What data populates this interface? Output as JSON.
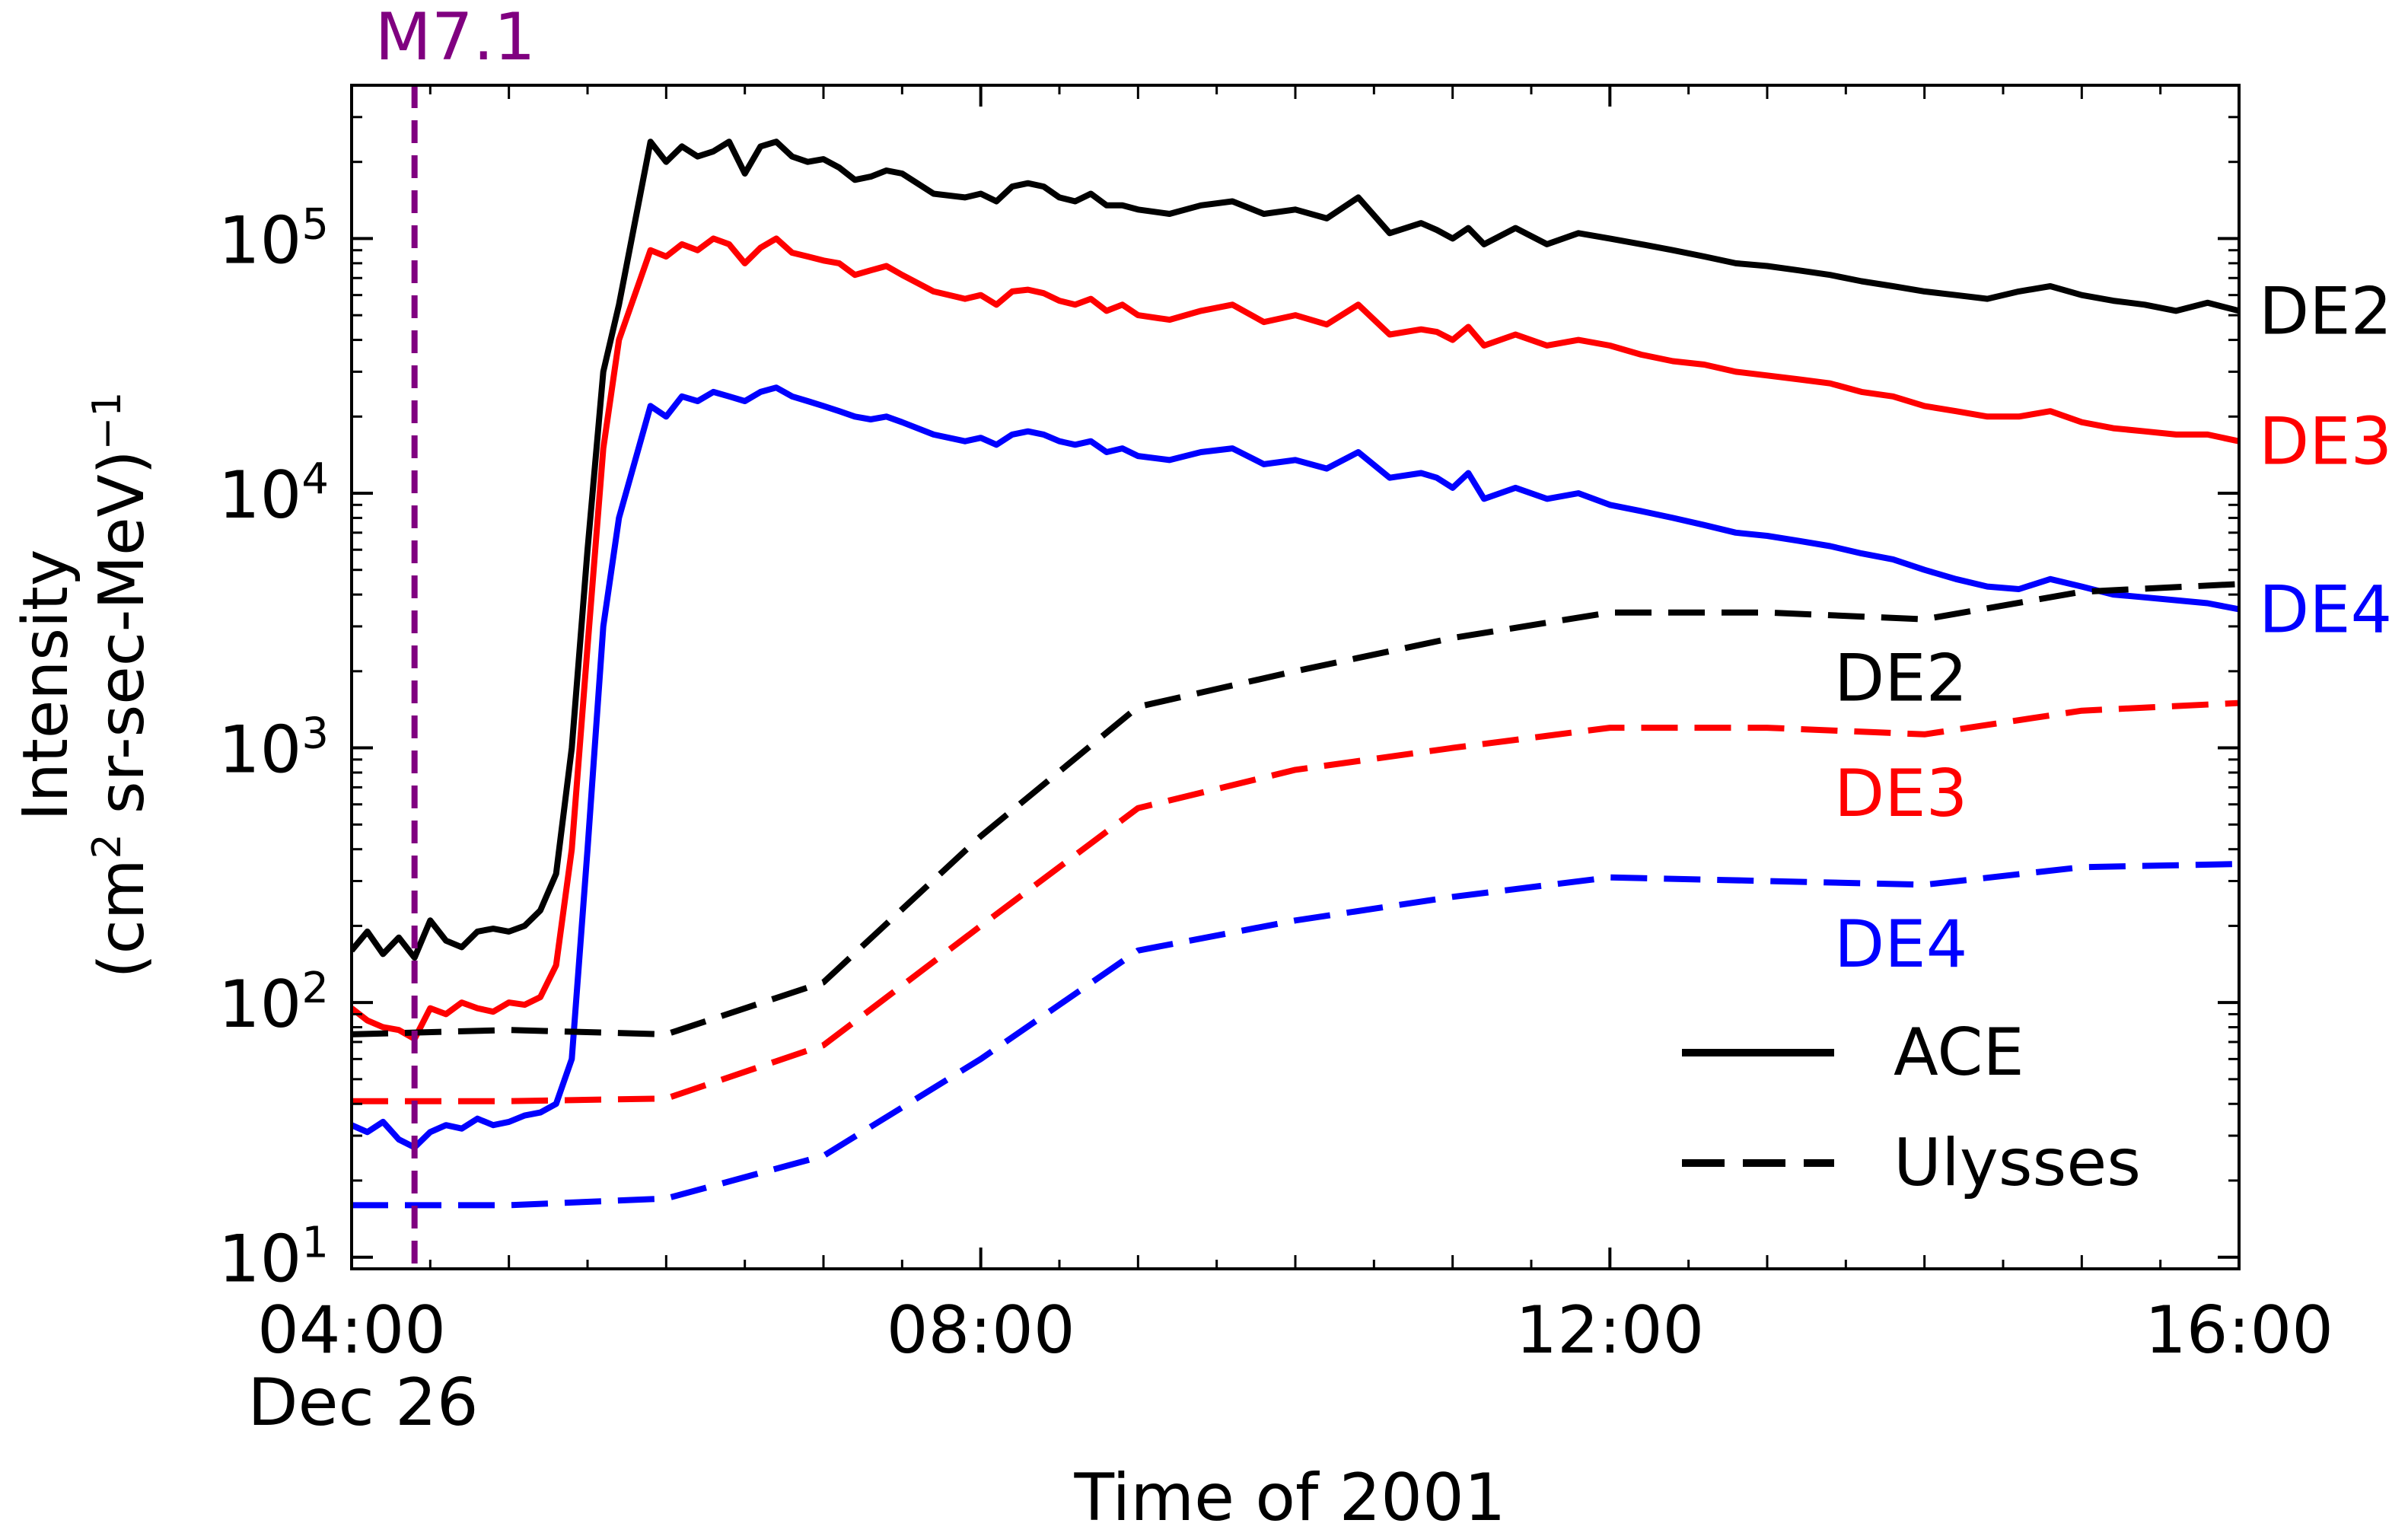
{
  "chart_data": {
    "type": "line",
    "xlabel": "Time of 2001",
    "ylabel_line1": "Intensity",
    "ylabel_line2_prefix": "(cm",
    "ylabel_line2_sup": "2",
    "ylabel_line2_suffix": " sr-sec-MeV)",
    "ylabel_line2_exp": "−1",
    "x_unit": "hours since 00:00 Dec 26",
    "xlim": [
      4,
      16
    ],
    "y_scale": "log",
    "ylim": [
      9,
      400000
    ],
    "x_ticks": [
      {
        "value": 4,
        "label": "04:00"
      },
      {
        "value": 8,
        "label": "08:00"
      },
      {
        "value": 12,
        "label": "12:00"
      },
      {
        "value": 16,
        "label": "16:00"
      }
    ],
    "x_date_label": "Dec 26",
    "y_ticks": [
      {
        "value": 10,
        "base": "10",
        "exp": "1"
      },
      {
        "value": 100,
        "base": "10",
        "exp": "2"
      },
      {
        "value": 1000,
        "base": "10",
        "exp": "3"
      },
      {
        "value": 10000,
        "base": "10",
        "exp": "4"
      },
      {
        "value": 100000,
        "base": "10",
        "exp": "5"
      }
    ],
    "event": {
      "label": "M7.1",
      "x": 4.4,
      "color": "#800080"
    },
    "legend": [
      {
        "label": "ACE",
        "style": "solid"
      },
      {
        "label": "Ulysses",
        "style": "dashed"
      }
    ],
    "series": [
      {
        "name": "ACE DE2",
        "label": "DE2",
        "color": "#000000",
        "style": "solid",
        "x": [
          4,
          4.1,
          4.2,
          4.3,
          4.4,
          4.5,
          4.6,
          4.7,
          4.8,
          4.9,
          5,
          5.1,
          5.2,
          5.3,
          5.4,
          5.5,
          5.6,
          5.7,
          5.9,
          6.0,
          6.1,
          6.2,
          6.3,
          6.4,
          6.5,
          6.6,
          6.7,
          6.8,
          6.9,
          7.0,
          7.1,
          7.2,
          7.3,
          7.4,
          7.5,
          7.7,
          7.9,
          8.0,
          8.1,
          8.2,
          8.3,
          8.4,
          8.5,
          8.6,
          8.7,
          8.8,
          8.9,
          9.0,
          9.2,
          9.4,
          9.6,
          9.8,
          10.0,
          10.2,
          10.4,
          10.6,
          10.8,
          10.9,
          11.0,
          11.1,
          11.2,
          11.4,
          11.6,
          11.8,
          12.0,
          12.2,
          12.4,
          12.6,
          12.8,
          13.0,
          13.2,
          13.4,
          13.6,
          13.8,
          14.0,
          14.2,
          14.4,
          14.6,
          14.8,
          15.0,
          15.2,
          15.4,
          15.6,
          15.8,
          16.0
        ],
        "y": [
          160,
          190,
          155,
          180,
          150,
          210,
          175,
          165,
          190,
          195,
          190,
          200,
          230,
          320,
          1000,
          6000,
          30000,
          55000,
          240000,
          200000,
          230000,
          210000,
          220000,
          240000,
          180000,
          230000,
          240000,
          210000,
          200000,
          205000,
          190000,
          170000,
          175000,
          185000,
          180000,
          150000,
          145000,
          150000,
          140000,
          160000,
          165000,
          160000,
          145000,
          140000,
          150000,
          135000,
          135000,
          130000,
          125000,
          135000,
          140000,
          125000,
          130000,
          120000,
          145000,
          105000,
          115000,
          108000,
          100000,
          110000,
          95000,
          110000,
          95000,
          105000,
          100000,
          95000,
          90000,
          85000,
          80000,
          78000,
          75000,
          72000,
          68000,
          65000,
          62000,
          60000,
          58000,
          62000,
          65000,
          60000,
          57000,
          55000,
          52000,
          56000,
          52000
        ]
      },
      {
        "name": "ACE DE3",
        "label": "DE3",
        "color": "#ff0000",
        "style": "solid",
        "x": [
          4,
          4.1,
          4.2,
          4.3,
          4.4,
          4.5,
          4.6,
          4.7,
          4.8,
          4.9,
          5,
          5.1,
          5.2,
          5.3,
          5.4,
          5.5,
          5.6,
          5.7,
          5.9,
          6.0,
          6.1,
          6.2,
          6.3,
          6.4,
          6.5,
          6.6,
          6.7,
          6.8,
          6.9,
          7.0,
          7.1,
          7.2,
          7.3,
          7.4,
          7.5,
          7.7,
          7.9,
          8.0,
          8.1,
          8.2,
          8.3,
          8.4,
          8.5,
          8.6,
          8.7,
          8.8,
          8.9,
          9.0,
          9.2,
          9.4,
          9.6,
          9.8,
          10.0,
          10.2,
          10.4,
          10.6,
          10.8,
          10.9,
          11.0,
          11.1,
          11.2,
          11.4,
          11.6,
          11.8,
          12.0,
          12.2,
          12.4,
          12.6,
          12.8,
          13.0,
          13.2,
          13.4,
          13.6,
          13.8,
          14.0,
          14.2,
          14.4,
          14.6,
          14.8,
          15.0,
          15.2,
          15.4,
          15.6,
          15.8,
          16.0
        ],
        "y": [
          95,
          85,
          80,
          78,
          72,
          95,
          90,
          100,
          95,
          92,
          100,
          98,
          105,
          140,
          400,
          2500,
          15000,
          40000,
          90000,
          85000,
          95000,
          90000,
          100000,
          95000,
          80000,
          92000,
          100000,
          88000,
          85000,
          82000,
          80000,
          72000,
          75000,
          78000,
          72000,
          62000,
          58000,
          60000,
          55000,
          62000,
          63000,
          61000,
          57000,
          55000,
          58000,
          52000,
          55000,
          50000,
          48000,
          52000,
          55000,
          47000,
          50000,
          46000,
          55000,
          42000,
          44000,
          43000,
          40000,
          45000,
          38000,
          42000,
          38000,
          40000,
          38000,
          35000,
          33000,
          32000,
          30000,
          29000,
          28000,
          27000,
          25000,
          24000,
          22000,
          21000,
          20000,
          20000,
          21000,
          19000,
          18000,
          17500,
          17000,
          17000,
          16000
        ]
      },
      {
        "name": "ACE DE4",
        "label": "DE4",
        "color": "#0000ff",
        "style": "solid",
        "x": [
          4,
          4.1,
          4.2,
          4.3,
          4.4,
          4.5,
          4.6,
          4.7,
          4.8,
          4.9,
          5,
          5.1,
          5.2,
          5.3,
          5.4,
          5.5,
          5.6,
          5.7,
          5.9,
          6.0,
          6.1,
          6.2,
          6.3,
          6.4,
          6.5,
          6.6,
          6.7,
          6.8,
          6.9,
          7.0,
          7.1,
          7.2,
          7.3,
          7.4,
          7.5,
          7.7,
          7.9,
          8.0,
          8.1,
          8.2,
          8.3,
          8.4,
          8.5,
          8.6,
          8.7,
          8.8,
          8.9,
          9.0,
          9.2,
          9.4,
          9.6,
          9.8,
          10.0,
          10.2,
          10.4,
          10.6,
          10.8,
          10.9,
          11.0,
          11.1,
          11.2,
          11.4,
          11.6,
          11.8,
          12.0,
          12.2,
          12.4,
          12.6,
          12.8,
          13.0,
          13.2,
          13.4,
          13.6,
          13.8,
          14.0,
          14.2,
          14.4,
          14.6,
          14.8,
          15.0,
          15.2,
          15.4,
          15.6,
          15.8,
          16.0
        ],
        "y": [
          33,
          31,
          34,
          29,
          27,
          31,
          33,
          32,
          35,
          33,
          34,
          36,
          37,
          40,
          60,
          400,
          3000,
          8000,
          22000,
          20000,
          24000,
          23000,
          25000,
          24000,
          23000,
          25000,
          26000,
          24000,
          23000,
          22000,
          21000,
          20000,
          19500,
          20000,
          19000,
          17000,
          16000,
          16500,
          15500,
          17000,
          17500,
          17000,
          16000,
          15500,
          16000,
          14500,
          15000,
          14000,
          13500,
          14500,
          15000,
          13000,
          13500,
          12500,
          14500,
          11500,
          12000,
          11500,
          10500,
          12000,
          9500,
          10500,
          9500,
          10000,
          9000,
          8500,
          8000,
          7500,
          7000,
          6800,
          6500,
          6200,
          5800,
          5500,
          5000,
          4600,
          4300,
          4200,
          4600,
          4300,
          4000,
          3900,
          3800,
          3700,
          3500
        ]
      },
      {
        "name": "Ulysses DE2",
        "label": "DE2",
        "color": "#000000",
        "style": "dashed",
        "x": [
          4,
          5,
          6,
          7,
          8,
          9,
          10,
          11,
          12,
          13,
          14,
          15,
          16
        ],
        "y": [
          75,
          78,
          75,
          120,
          450,
          1450,
          2000,
          2700,
          3400,
          3400,
          3200,
          4100,
          4400
        ]
      },
      {
        "name": "Ulysses DE3",
        "label": "DE3",
        "color": "#ff0000",
        "style": "dashed",
        "x": [
          4,
          5,
          6,
          7,
          8,
          9,
          10,
          11,
          12,
          13,
          14,
          15,
          16
        ],
        "y": [
          41,
          41,
          42,
          68,
          200,
          580,
          820,
          1000,
          1200,
          1200,
          1130,
          1400,
          1500
        ]
      },
      {
        "name": "Ulysses DE4",
        "label": "DE4",
        "color": "#0000ff",
        "style": "dashed",
        "x": [
          4,
          5,
          6,
          7,
          8,
          9,
          10,
          11,
          12,
          13,
          14,
          15,
          16
        ],
        "y": [
          16,
          16,
          17,
          25,
          60,
          160,
          210,
          260,
          310,
          300,
          290,
          340,
          350
        ]
      }
    ]
  }
}
